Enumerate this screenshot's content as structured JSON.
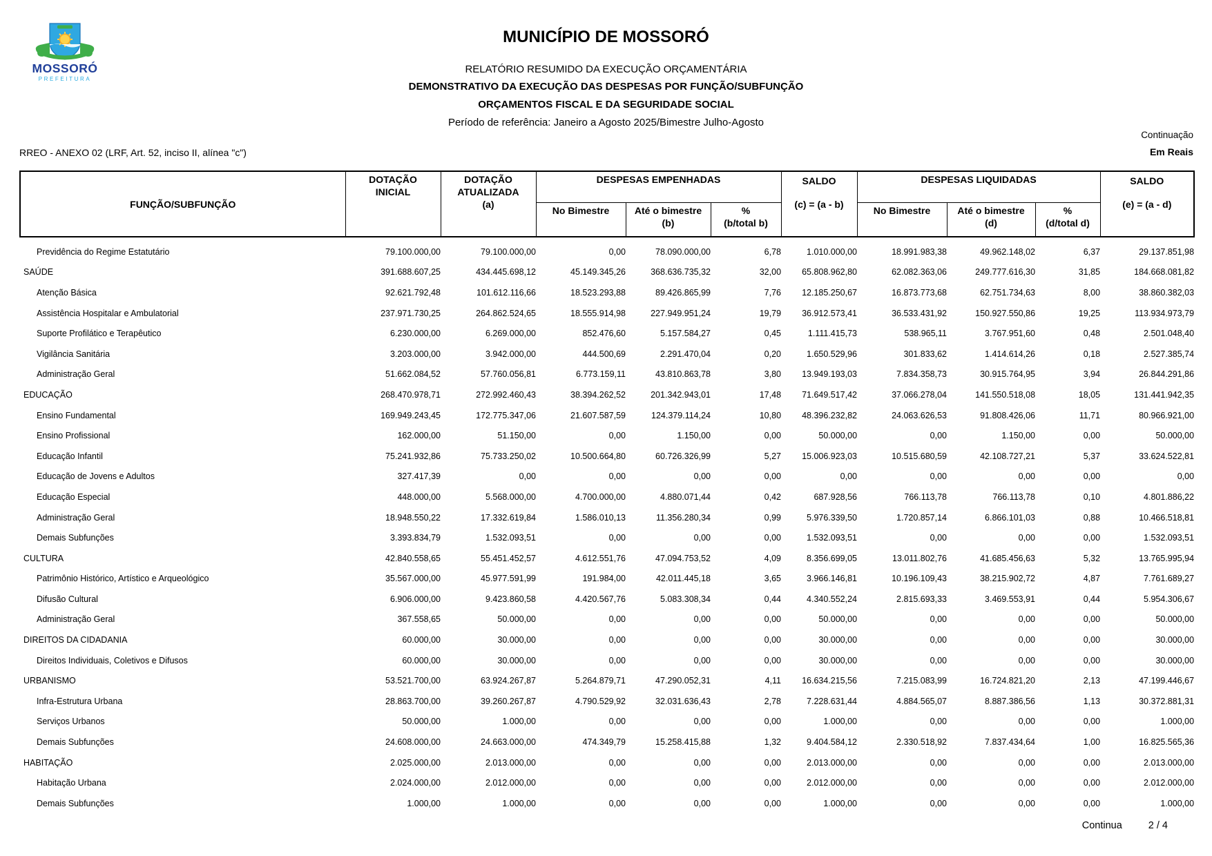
{
  "header": {
    "municipality": "MUNICÍPIO DE MOSSORÓ",
    "report_title": "RELATÓRIO RESUMIDO DA EXECUÇÃO ORÇAMENTÁRIA",
    "subtitle1": "DEMONSTRATIVO DA EXECUÇÃO DAS DESPESAS POR FUNÇÃO/SUBFUNÇÃO",
    "subtitle2": "ORÇAMENTOS FISCAL E DA SEGURIDADE SOCIAL",
    "period": "Período de referência: Janeiro a Agosto 2025/Bimestre Julho-Agosto",
    "continuation": "Continuação",
    "anexo": "RREO - ANEXO 02 (LRF, Art. 52, inciso II, alínea \"c\")",
    "currency_note": "Em Reais",
    "logo": {
      "name": "MOSSORÓ",
      "sub": "PREFEITURA"
    }
  },
  "table": {
    "header": {
      "funcao": "FUNÇÃO/SUBFUNÇÃO",
      "dotacao_inicial": "DOTAÇÃO\nINICIAL",
      "dotacao_atualizada": "DOTAÇÃO\nATUALIZADA\n(a)",
      "despesas_empenhadas": "DESPESAS EMPENHADAS",
      "despesas_liquidadas": "DESPESAS LIQUIDADAS",
      "no_bimestre": "No Bimestre",
      "ate_bimestre_b": "Até o bimestre\n(b)",
      "pct_b": "%\n(b/total b)",
      "ate_bimestre_d": "Até o bimestre\n(d)",
      "pct_d": "%\n(d/total d)",
      "saldo_label": "SALDO",
      "saldo_c_formula": "(c) = (a - b)",
      "saldo_e_formula": "(e) = (a - d)"
    },
    "rows": [
      {
        "label": "Previdência do Regime Estatutário",
        "level": "sub",
        "values": [
          "79.100.000,00",
          "79.100.000,00",
          "0,00",
          "78.090.000,00",
          "6,78",
          "1.010.000,00",
          "18.991.983,38",
          "49.962.148,02",
          "6,37",
          "29.137.851,98"
        ]
      },
      {
        "label": "SAÚDE",
        "level": "fn",
        "values": [
          "391.688.607,25",
          "434.445.698,12",
          "45.149.345,26",
          "368.636.735,32",
          "32,00",
          "65.808.962,80",
          "62.082.363,06",
          "249.777.616,30",
          "31,85",
          "184.668.081,82"
        ]
      },
      {
        "label": "Atenção Básica",
        "level": "sub",
        "values": [
          "92.621.792,48",
          "101.612.116,66",
          "18.523.293,88",
          "89.426.865,99",
          "7,76",
          "12.185.250,67",
          "16.873.773,68",
          "62.751.734,63",
          "8,00",
          "38.860.382,03"
        ]
      },
      {
        "label": "Assistência Hospitalar e Ambulatorial",
        "level": "sub",
        "values": [
          "237.971.730,25",
          "264.862.524,65",
          "18.555.914,98",
          "227.949.951,24",
          "19,79",
          "36.912.573,41",
          "36.533.431,92",
          "150.927.550,86",
          "19,25",
          "113.934.973,79"
        ]
      },
      {
        "label": "Suporte Profilático e Terapêutico",
        "level": "sub",
        "values": [
          "6.230.000,00",
          "6.269.000,00",
          "852.476,60",
          "5.157.584,27",
          "0,45",
          "1.111.415,73",
          "538.965,11",
          "3.767.951,60",
          "0,48",
          "2.501.048,40"
        ]
      },
      {
        "label": "Vigilância Sanitária",
        "level": "sub",
        "values": [
          "3.203.000,00",
          "3.942.000,00",
          "444.500,69",
          "2.291.470,04",
          "0,20",
          "1.650.529,96",
          "301.833,62",
          "1.414.614,26",
          "0,18",
          "2.527.385,74"
        ]
      },
      {
        "label": "Administração Geral",
        "level": "sub",
        "values": [
          "51.662.084,52",
          "57.760.056,81",
          "6.773.159,11",
          "43.810.863,78",
          "3,80",
          "13.949.193,03",
          "7.834.358,73",
          "30.915.764,95",
          "3,94",
          "26.844.291,86"
        ]
      },
      {
        "label": "EDUCAÇÃO",
        "level": "fn",
        "values": [
          "268.470.978,71",
          "272.992.460,43",
          "38.394.262,52",
          "201.342.943,01",
          "17,48",
          "71.649.517,42",
          "37.066.278,04",
          "141.550.518,08",
          "18,05",
          "131.441.942,35"
        ]
      },
      {
        "label": "Ensino Fundamental",
        "level": "sub",
        "values": [
          "169.949.243,45",
          "172.775.347,06",
          "21.607.587,59",
          "124.379.114,24",
          "10,80",
          "48.396.232,82",
          "24.063.626,53",
          "91.808.426,06",
          "11,71",
          "80.966.921,00"
        ]
      },
      {
        "label": "Ensino Profissional",
        "level": "sub",
        "values": [
          "162.000,00",
          "51.150,00",
          "0,00",
          "1.150,00",
          "0,00",
          "50.000,00",
          "0,00",
          "1.150,00",
          "0,00",
          "50.000,00"
        ]
      },
      {
        "label": "Educação Infantil",
        "level": "sub",
        "values": [
          "75.241.932,86",
          "75.733.250,02",
          "10.500.664,80",
          "60.726.326,99",
          "5,27",
          "15.006.923,03",
          "10.515.680,59",
          "42.108.727,21",
          "5,37",
          "33.624.522,81"
        ]
      },
      {
        "label": "Educação de Jovens e Adultos",
        "level": "sub",
        "values": [
          "327.417,39",
          "0,00",
          "0,00",
          "0,00",
          "0,00",
          "0,00",
          "0,00",
          "0,00",
          "0,00",
          "0,00"
        ]
      },
      {
        "label": "Educação Especial",
        "level": "sub",
        "values": [
          "448.000,00",
          "5.568.000,00",
          "4.700.000,00",
          "4.880.071,44",
          "0,42",
          "687.928,56",
          "766.113,78",
          "766.113,78",
          "0,10",
          "4.801.886,22"
        ]
      },
      {
        "label": "Administração Geral",
        "level": "sub",
        "values": [
          "18.948.550,22",
          "17.332.619,84",
          "1.586.010,13",
          "11.356.280,34",
          "0,99",
          "5.976.339,50",
          "1.720.857,14",
          "6.866.101,03",
          "0,88",
          "10.466.518,81"
        ]
      },
      {
        "label": "Demais Subfunções",
        "level": "sub",
        "values": [
          "3.393.834,79",
          "1.532.093,51",
          "0,00",
          "0,00",
          "0,00",
          "1.532.093,51",
          "0,00",
          "0,00",
          "0,00",
          "1.532.093,51"
        ]
      },
      {
        "label": "CULTURA",
        "level": "fn",
        "values": [
          "42.840.558,65",
          "55.451.452,57",
          "4.612.551,76",
          "47.094.753,52",
          "4,09",
          "8.356.699,05",
          "13.011.802,76",
          "41.685.456,63",
          "5,32",
          "13.765.995,94"
        ]
      },
      {
        "label": "Patrimônio Histórico, Artístico e Arqueológico",
        "level": "sub",
        "values": [
          "35.567.000,00",
          "45.977.591,99",
          "191.984,00",
          "42.011.445,18",
          "3,65",
          "3.966.146,81",
          "10.196.109,43",
          "38.215.902,72",
          "4,87",
          "7.761.689,27"
        ]
      },
      {
        "label": "Difusão Cultural",
        "level": "sub",
        "values": [
          "6.906.000,00",
          "9.423.860,58",
          "4.420.567,76",
          "5.083.308,34",
          "0,44",
          "4.340.552,24",
          "2.815.693,33",
          "3.469.553,91",
          "0,44",
          "5.954.306,67"
        ]
      },
      {
        "label": "Administração Geral",
        "level": "sub",
        "values": [
          "367.558,65",
          "50.000,00",
          "0,00",
          "0,00",
          "0,00",
          "50.000,00",
          "0,00",
          "0,00",
          "0,00",
          "50.000,00"
        ]
      },
      {
        "label": "DIREITOS DA CIDADANIA",
        "level": "fn",
        "values": [
          "60.000,00",
          "30.000,00",
          "0,00",
          "0,00",
          "0,00",
          "30.000,00",
          "0,00",
          "0,00",
          "0,00",
          "30.000,00"
        ]
      },
      {
        "label": "Direitos Individuais, Coletivos e Difusos",
        "level": "sub",
        "values": [
          "60.000,00",
          "30.000,00",
          "0,00",
          "0,00",
          "0,00",
          "30.000,00",
          "0,00",
          "0,00",
          "0,00",
          "30.000,00"
        ]
      },
      {
        "label": "URBANISMO",
        "level": "fn",
        "values": [
          "53.521.700,00",
          "63.924.267,87",
          "5.264.879,71",
          "47.290.052,31",
          "4,11",
          "16.634.215,56",
          "7.215.083,99",
          "16.724.821,20",
          "2,13",
          "47.199.446,67"
        ]
      },
      {
        "label": "Infra-Estrutura Urbana",
        "level": "sub",
        "values": [
          "28.863.700,00",
          "39.260.267,87",
          "4.790.529,92",
          "32.031.636,43",
          "2,78",
          "7.228.631,44",
          "4.884.565,07",
          "8.887.386,56",
          "1,13",
          "30.372.881,31"
        ]
      },
      {
        "label": "Serviços Urbanos",
        "level": "sub",
        "values": [
          "50.000,00",
          "1.000,00",
          "0,00",
          "0,00",
          "0,00",
          "1.000,00",
          "0,00",
          "0,00",
          "0,00",
          "1.000,00"
        ]
      },
      {
        "label": "Demais Subfunções",
        "level": "sub",
        "values": [
          "24.608.000,00",
          "24.663.000,00",
          "474.349,79",
          "15.258.415,88",
          "1,32",
          "9.404.584,12",
          "2.330.518,92",
          "7.837.434,64",
          "1,00",
          "16.825.565,36"
        ]
      },
      {
        "label": "HABITAÇÃO",
        "level": "fn",
        "values": [
          "2.025.000,00",
          "2.013.000,00",
          "0,00",
          "0,00",
          "0,00",
          "2.013.000,00",
          "0,00",
          "0,00",
          "0,00",
          "2.013.000,00"
        ]
      },
      {
        "label": "Habitação Urbana",
        "level": "sub",
        "values": [
          "2.024.000,00",
          "2.012.000,00",
          "0,00",
          "0,00",
          "0,00",
          "2.012.000,00",
          "0,00",
          "0,00",
          "0,00",
          "2.012.000,00"
        ]
      },
      {
        "label": "Demais Subfunções",
        "level": "sub",
        "values": [
          "1.000,00",
          "1.000,00",
          "0,00",
          "0,00",
          "0,00",
          "1.000,00",
          "0,00",
          "0,00",
          "0,00",
          "1.000,00"
        ]
      }
    ]
  },
  "footer": {
    "continua": "Continua",
    "page": "2 / 4"
  }
}
